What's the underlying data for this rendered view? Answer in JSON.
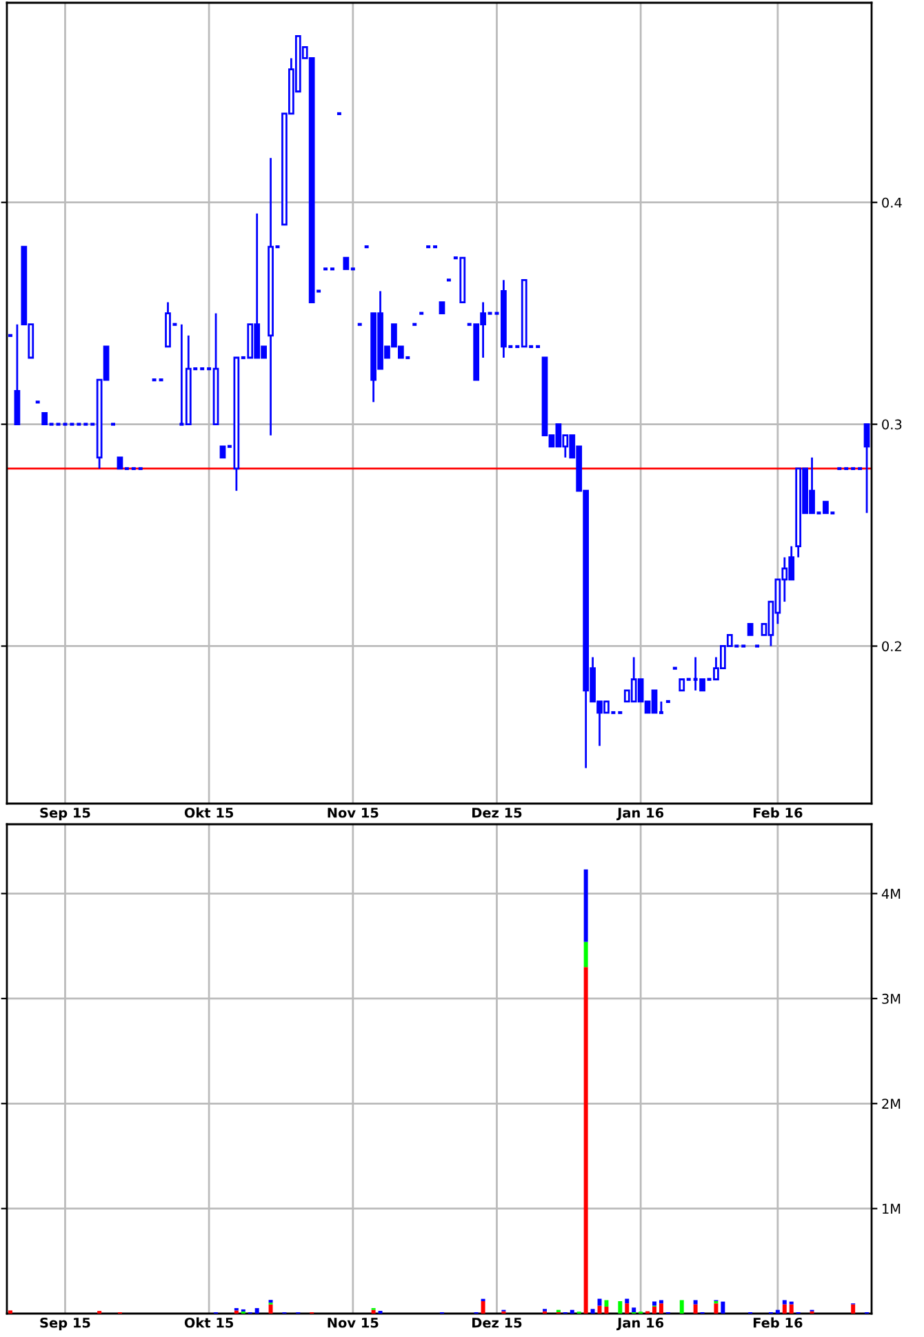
{
  "chart_data": [
    {
      "type": "candlestick",
      "color": "#0000ff",
      "grid": true,
      "categories": [
        null,
        null,
        null,
        null,
        null,
        null,
        null,
        null,
        "Sep 15",
        null,
        null,
        null,
        null,
        null,
        null,
        null,
        null,
        null,
        null,
        null,
        null,
        null,
        null,
        null,
        null,
        null,
        null,
        null,
        null,
        "Okt 15",
        null,
        null,
        null,
        null,
        null,
        null,
        null,
        null,
        null,
        null,
        null,
        null,
        null,
        null,
        null,
        null,
        null,
        null,
        null,
        null,
        "Nov 15",
        null,
        null,
        null,
        null,
        null,
        null,
        null,
        null,
        null,
        null,
        null,
        null,
        null,
        null,
        null,
        null,
        null,
        null,
        null,
        null,
        "Dez 15",
        null,
        null,
        null,
        null,
        null,
        null,
        null,
        null,
        null,
        null,
        null,
        null,
        null,
        null,
        null,
        null,
        null,
        null,
        null,
        null,
        "Jan 16",
        null,
        null,
        null,
        null,
        null,
        null,
        null,
        null,
        null,
        null,
        null,
        null,
        null,
        null,
        null,
        null,
        null,
        null,
        null,
        "Feb 16",
        null,
        null,
        null,
        null,
        null,
        null,
        null,
        null,
        null,
        null,
        null,
        null,
        null
      ],
      "ohlc": [
        [
          0.34,
          0.34,
          0.34,
          0.34
        ],
        [
          0.315,
          0.345,
          0.3,
          0.3
        ],
        [
          0.38,
          0.38,
          0.345,
          0.345
        ],
        [
          0.33,
          0.345,
          0.33,
          0.345
        ],
        [
          0.31,
          0.31,
          0.31,
          0.31
        ],
        [
          0.305,
          0.305,
          0.3,
          0.3
        ],
        [
          0.3,
          0.3,
          0.3,
          0.3
        ],
        [
          0.3,
          0.3,
          0.3,
          0.3
        ],
        [
          0.3,
          0.3,
          0.3,
          0.3
        ],
        [
          0.3,
          0.3,
          0.3,
          0.3
        ],
        [
          0.3,
          0.3,
          0.3,
          0.3
        ],
        [
          0.3,
          0.3,
          0.3,
          0.3
        ],
        [
          0.3,
          0.3,
          0.3,
          0.3
        ],
        [
          0.285,
          0.32,
          0.28,
          0.32
        ],
        [
          0.335,
          0.335,
          0.32,
          0.32
        ],
        [
          0.3,
          0.3,
          0.3,
          0.3
        ],
        [
          0.285,
          0.285,
          0.28,
          0.28
        ],
        [
          0.28,
          0.28,
          0.28,
          0.28
        ],
        [
          0.28,
          0.28,
          0.28,
          0.28
        ],
        [
          0.28,
          0.28,
          0.28,
          0.28
        ],
        null,
        [
          0.32,
          0.32,
          0.32,
          0.32
        ],
        [
          0.32,
          0.32,
          0.32,
          0.32
        ],
        [
          0.335,
          0.355,
          0.335,
          0.35
        ],
        [
          0.345,
          0.345,
          0.345,
          0.345
        ],
        [
          0.3,
          0.345,
          0.3,
          0.3
        ],
        [
          0.3,
          0.34,
          0.3,
          0.325
        ],
        [
          0.325,
          0.325,
          0.325,
          0.325
        ],
        [
          0.325,
          0.325,
          0.325,
          0.325
        ],
        [
          0.325,
          0.325,
          0.325,
          0.325
        ],
        [
          0.3,
          0.35,
          0.3,
          0.325
        ],
        [
          0.29,
          0.29,
          0.285,
          0.285
        ],
        [
          0.29,
          0.29,
          0.29,
          0.29
        ],
        [
          0.28,
          0.33,
          0.27,
          0.33
        ],
        [
          0.33,
          0.33,
          0.33,
          0.33
        ],
        [
          0.33,
          0.345,
          0.33,
          0.345
        ],
        [
          0.345,
          0.395,
          0.33,
          0.33
        ],
        [
          0.335,
          0.335,
          0.33,
          0.33
        ],
        [
          0.34,
          0.42,
          0.295,
          0.38
        ],
        [
          0.38,
          0.38,
          0.38,
          0.38
        ],
        [
          0.39,
          0.44,
          0.39,
          0.44
        ],
        [
          0.44,
          0.465,
          0.44,
          0.46
        ],
        [
          0.45,
          0.475,
          0.45,
          0.475
        ],
        [
          0.465,
          0.47,
          0.465,
          0.47
        ],
        [
          0.465,
          0.465,
          0.355,
          0.355
        ],
        [
          0.36,
          0.36,
          0.36,
          0.36
        ],
        [
          0.37,
          0.37,
          0.37,
          0.37
        ],
        [
          0.37,
          0.37,
          0.37,
          0.37
        ],
        [
          0.44,
          0.44,
          0.44,
          0.44
        ],
        [
          0.375,
          0.375,
          0.37,
          0.37
        ],
        [
          0.37,
          0.37,
          0.37,
          0.37
        ],
        [
          0.345,
          0.345,
          0.345,
          0.345
        ],
        [
          0.38,
          0.38,
          0.38,
          0.38
        ],
        [
          0.35,
          0.35,
          0.31,
          0.32
        ],
        [
          0.35,
          0.36,
          0.325,
          0.325
        ],
        [
          0.335,
          0.335,
          0.33,
          0.33
        ],
        [
          0.345,
          0.345,
          0.335,
          0.335
        ],
        [
          0.335,
          0.335,
          0.33,
          0.33
        ],
        [
          0.33,
          0.33,
          0.33,
          0.33
        ],
        [
          0.345,
          0.345,
          0.345,
          0.345
        ],
        [
          0.35,
          0.35,
          0.35,
          0.35
        ],
        [
          0.38,
          0.38,
          0.38,
          0.38
        ],
        [
          0.38,
          0.38,
          0.38,
          0.38
        ],
        [
          0.355,
          0.355,
          0.35,
          0.35
        ],
        [
          0.365,
          0.365,
          0.365,
          0.365
        ],
        [
          0.375,
          0.375,
          0.375,
          0.375
        ],
        [
          0.355,
          0.375,
          0.355,
          0.375
        ],
        [
          0.345,
          0.345,
          0.345,
          0.345
        ],
        [
          0.345,
          0.345,
          0.32,
          0.32
        ],
        [
          0.35,
          0.355,
          0.33,
          0.345
        ],
        [
          0.35,
          0.35,
          0.35,
          0.35
        ],
        [
          0.35,
          0.35,
          0.35,
          0.35
        ],
        [
          0.36,
          0.365,
          0.33,
          0.335
        ],
        [
          0.335,
          0.335,
          0.335,
          0.335
        ],
        [
          0.335,
          0.335,
          0.335,
          0.335
        ],
        [
          0.335,
          0.365,
          0.335,
          0.365
        ],
        [
          0.335,
          0.335,
          0.335,
          0.335
        ],
        [
          0.335,
          0.335,
          0.335,
          0.335
        ],
        [
          0.33,
          0.33,
          0.295,
          0.295
        ],
        [
          0.295,
          0.295,
          0.29,
          0.29
        ],
        [
          0.3,
          0.3,
          0.29,
          0.29
        ],
        [
          0.29,
          0.295,
          0.285,
          0.295
        ],
        [
          0.295,
          0.295,
          0.285,
          0.285
        ],
        [
          0.29,
          0.29,
          0.27,
          0.27
        ],
        [
          0.27,
          0.27,
          0.145,
          0.18
        ],
        [
          0.19,
          0.195,
          0.175,
          0.175
        ],
        [
          0.175,
          0.175,
          0.155,
          0.17
        ],
        [
          0.17,
          0.175,
          0.17,
          0.175
        ],
        [
          0.17,
          0.17,
          0.17,
          0.17
        ],
        [
          0.17,
          0.17,
          0.17,
          0.17
        ],
        [
          0.175,
          0.18,
          0.175,
          0.18
        ],
        [
          0.175,
          0.195,
          0.175,
          0.185
        ],
        [
          0.185,
          0.185,
          0.175,
          0.175
        ],
        [
          0.175,
          0.175,
          0.17,
          0.17
        ],
        [
          0.18,
          0.18,
          0.17,
          0.17
        ],
        [
          0.17,
          0.175,
          0.17,
          0.17
        ],
        [
          0.175,
          0.175,
          0.175,
          0.175
        ],
        [
          0.19,
          0.19,
          0.19,
          0.19
        ],
        [
          0.18,
          0.185,
          0.18,
          0.185
        ],
        [
          0.185,
          0.185,
          0.185,
          0.185
        ],
        [
          0.185,
          0.195,
          0.18,
          0.185
        ],
        [
          0.185,
          0.185,
          0.18,
          0.18
        ],
        [
          0.185,
          0.185,
          0.185,
          0.185
        ],
        [
          0.185,
          0.195,
          0.185,
          0.19
        ],
        [
          0.19,
          0.2,
          0.19,
          0.2
        ],
        [
          0.2,
          0.205,
          0.2,
          0.205
        ],
        [
          0.2,
          0.2,
          0.2,
          0.2
        ],
        [
          0.2,
          0.2,
          0.2,
          0.2
        ],
        [
          0.21,
          0.21,
          0.205,
          0.205
        ],
        [
          0.2,
          0.2,
          0.2,
          0.2
        ],
        [
          0.205,
          0.21,
          0.205,
          0.21
        ],
        [
          0.205,
          0.22,
          0.2,
          0.22
        ],
        [
          0.215,
          0.23,
          0.21,
          0.23
        ],
        [
          0.23,
          0.24,
          0.22,
          0.235
        ],
        [
          0.24,
          0.245,
          0.23,
          0.23
        ],
        [
          0.245,
          0.28,
          0.24,
          0.28
        ],
        [
          0.28,
          0.28,
          0.26,
          0.26
        ],
        [
          0.27,
          0.285,
          0.26,
          0.26
        ],
        [
          0.26,
          0.26,
          0.26,
          0.26
        ],
        [
          0.265,
          0.265,
          0.26,
          0.26
        ],
        [
          0.26,
          0.26,
          0.26,
          0.26
        ],
        [
          0.28,
          0.28,
          0.28,
          0.28
        ],
        [
          0.28,
          0.28,
          0.28,
          0.28
        ],
        [
          0.28,
          0.28,
          0.28,
          0.28
        ],
        [
          0.28,
          0.28,
          0.28,
          0.28
        ],
        [
          0.3,
          0.3,
          0.26,
          0.29
        ]
      ],
      "ylim": [
        0.129,
        0.49
      ],
      "yticks": [
        0.2,
        0.3,
        0.4
      ],
      "ref_lines": [
        {
          "axis": "y",
          "value": 0.28,
          "color": "#ff0000"
        }
      ]
    },
    {
      "type": "bar",
      "stacked": true,
      "grid": true,
      "categories": [
        null,
        null,
        null,
        null,
        null,
        null,
        null,
        null,
        "Sep 15",
        null,
        null,
        null,
        null,
        null,
        null,
        null,
        null,
        null,
        null,
        null,
        null,
        null,
        null,
        null,
        null,
        null,
        null,
        null,
        null,
        "Okt 15",
        null,
        null,
        null,
        null,
        null,
        null,
        null,
        null,
        null,
        null,
        null,
        null,
        null,
        null,
        null,
        null,
        null,
        null,
        null,
        null,
        "Nov 15",
        null,
        null,
        null,
        null,
        null,
        null,
        null,
        null,
        null,
        null,
        null,
        null,
        null,
        null,
        null,
        null,
        null,
        null,
        null,
        null,
        "Dez 15",
        null,
        null,
        null,
        null,
        null,
        null,
        null,
        null,
        null,
        null,
        null,
        null,
        null,
        null,
        null,
        null,
        null,
        null,
        null,
        null,
        "Jan 16",
        null,
        null,
        null,
        null,
        null,
        null,
        null,
        null,
        null,
        null,
        null,
        null,
        null,
        null,
        null,
        null,
        null,
        null,
        null,
        "Feb 16",
        null,
        null,
        null,
        null,
        null,
        null,
        null,
        null,
        null,
        null,
        null,
        null,
        null
      ],
      "series": [
        {
          "color": "#ff0000",
          "values": [
            30000,
            null,
            null,
            null,
            null,
            null,
            null,
            null,
            null,
            null,
            null,
            null,
            null,
            25000,
            null,
            null,
            12000,
            null,
            null,
            null,
            null,
            null,
            null,
            null,
            null,
            null,
            null,
            null,
            null,
            null,
            null,
            null,
            null,
            30000,
            null,
            null,
            null,
            null,
            87000,
            null,
            null,
            null,
            null,
            null,
            12000,
            null,
            null,
            null,
            null,
            null,
            null,
            null,
            null,
            35000,
            null,
            null,
            null,
            null,
            null,
            null,
            null,
            null,
            null,
            null,
            null,
            null,
            null,
            null,
            null,
            118000,
            null,
            null,
            22000,
            null,
            null,
            null,
            null,
            null,
            22000,
            null,
            13000,
            null,
            null,
            null,
            3300000,
            null,
            75000,
            66000,
            null,
            null,
            97000,
            null,
            null,
            22000,
            66000,
            97000,
            null,
            null,
            null,
            null,
            88000,
            null,
            null,
            97000,
            null,
            null,
            null,
            null,
            null,
            null,
            null,
            null,
            null,
            88000,
            88000,
            null,
            null,
            22000,
            null,
            null,
            null,
            null,
            null,
            88000,
            null,
            null
          ]
        },
        {
          "color": "#00ff00",
          "values": [
            null,
            null,
            null,
            null,
            null,
            null,
            null,
            null,
            null,
            null,
            null,
            null,
            null,
            null,
            null,
            null,
            null,
            null,
            null,
            null,
            null,
            null,
            null,
            null,
            null,
            null,
            null,
            null,
            null,
            null,
            null,
            null,
            null,
            null,
            20000,
            null,
            null,
            null,
            17000,
            null,
            null,
            null,
            null,
            null,
            null,
            null,
            null,
            null,
            null,
            null,
            null,
            null,
            null,
            17000,
            null,
            null,
            null,
            null,
            null,
            null,
            null,
            null,
            null,
            null,
            null,
            null,
            null,
            null,
            null,
            null,
            null,
            null,
            null,
            null,
            null,
            null,
            null,
            null,
            null,
            null,
            22000,
            null,
            null,
            18000,
            240000,
            null,
            null,
            62000,
            null,
            118000,
            null,
            13000,
            18000,
            null,
            9000,
            null,
            null,
            null,
            128000,
            null,
            null,
            null,
            null,
            22000,
            null,
            null,
            null,
            null,
            null,
            null,
            null,
            null,
            null,
            null,
            null,
            null,
            null,
            null,
            null,
            null,
            null,
            null,
            null,
            null,
            null,
            null
          ]
        },
        {
          "color": "#0000ff",
          "values": [
            null,
            null,
            null,
            null,
            null,
            null,
            null,
            null,
            null,
            null,
            null,
            null,
            null,
            null,
            null,
            null,
            null,
            null,
            null,
            null,
            null,
            null,
            null,
            null,
            null,
            null,
            null,
            null,
            null,
            null,
            12000,
            null,
            null,
            22000,
            20000,
            12000,
            52000,
            null,
            26000,
            null,
            12000,
            null,
            12000,
            null,
            null,
            null,
            null,
            null,
            null,
            null,
            null,
            null,
            null,
            null,
            26000,
            null,
            null,
            null,
            null,
            null,
            null,
            null,
            null,
            12000,
            null,
            null,
            null,
            null,
            13000,
            22000,
            null,
            null,
            13000,
            null,
            null,
            null,
            null,
            null,
            22000,
            null,
            null,
            13000,
            35000,
            null,
            690000,
            44000,
            66000,
            null,
            null,
            null,
            44000,
            44000,
            null,
            null,
            40000,
            31000,
            13000,
            null,
            null,
            null,
            40000,
            13000,
            null,
            9000,
            114000,
            null,
            null,
            null,
            13000,
            null,
            null,
            13000,
            35000,
            40000,
            26000,
            13000,
            null,
            13000,
            null,
            null,
            null,
            null,
            null,
            9000,
            null,
            13000
          ]
        }
      ],
      "ylim": [
        0,
        4660000
      ],
      "yticks": [
        {
          "value": 1000000,
          "label": "1M"
        },
        {
          "value": 2000000,
          "label": "2M"
        },
        {
          "value": 3000000,
          "label": "3M"
        },
        {
          "value": 4000000,
          "label": "4M"
        }
      ]
    }
  ]
}
